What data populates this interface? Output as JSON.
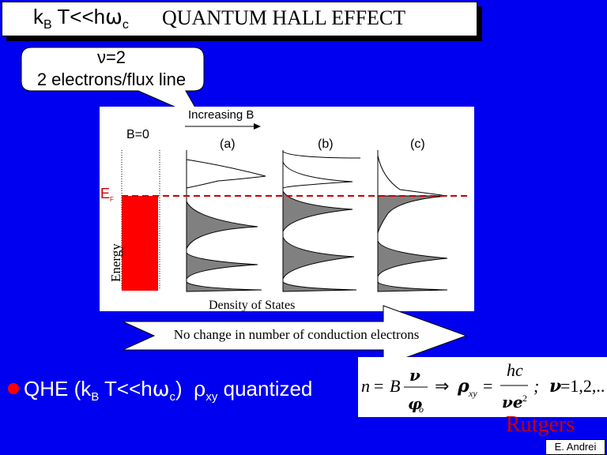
{
  "title": {
    "condition": "kB T<<hωc",
    "heading": "QUANTUM HALL EFFECT"
  },
  "callout": {
    "line1": "ν=2",
    "line2": "2 electrons/flux line"
  },
  "figure": {
    "increasing_b": "Increasing B",
    "b0_label": "B=0",
    "panel_a": "(a)",
    "panel_b": "(b)",
    "panel_c": "(c)",
    "fermi_label": "EF",
    "energy_label": "Energy",
    "dos_label": "Density of States"
  },
  "arrow_note": "No change in number of conduction electrons",
  "bullet": {
    "text": "QHE (kB T<<hωc) ρxy quantized"
  },
  "formula": {
    "text": "n = B ν/φo ⇒ ρxy = hc/νe² ; ν = 1,2,..."
  },
  "logo": "Rutgers",
  "author": "E. Andrei",
  "colors": {
    "background": "#0000f0",
    "fill_red": "#ff0000",
    "fermi_dash": "#cc0000",
    "gray_fill": "#808080"
  }
}
